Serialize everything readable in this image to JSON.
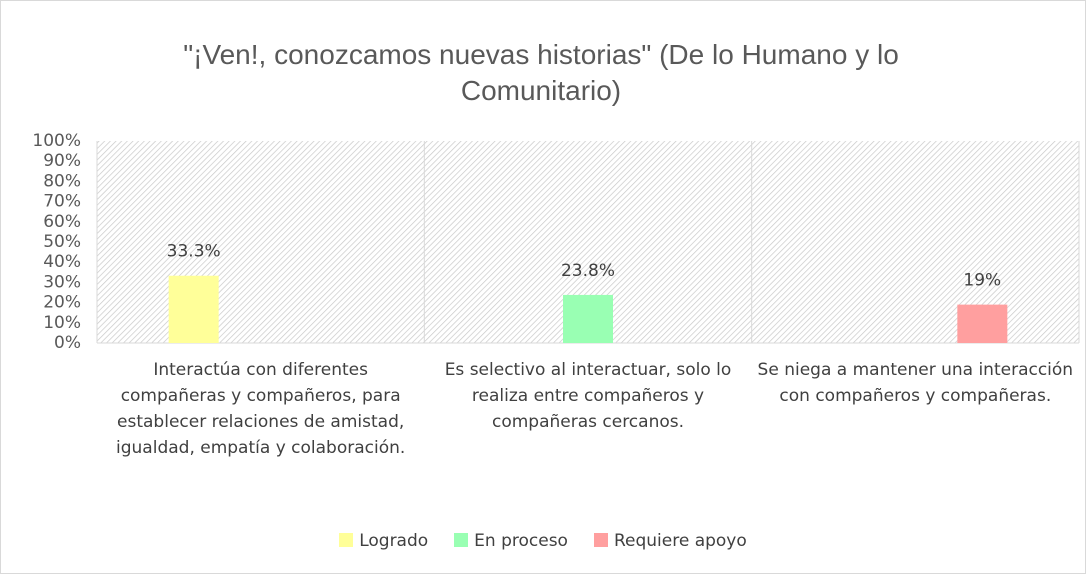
{
  "chart_data": {
    "type": "bar",
    "title": "\"¡Ven!, conozcamos nuevas historias\" (De lo Humano y lo Comunitario)",
    "categories": [
      "Interactúa con diferentes compañeras y compañeros, para establecer relaciones de amistad, igualdad, empatía y colaboración.",
      "Es selectivo al interactuar, solo lo realiza entre compañeros y compañeras cercanos.",
      "Se niega a mantener una interacción con compañeros y compañeras."
    ],
    "series": [
      {
        "name": "Logrado",
        "color": "#ffff99",
        "values": [
          33.3,
          null,
          null
        ],
        "value_labels": [
          "33.3%",
          null,
          null
        ]
      },
      {
        "name": "En proceso",
        "color": "#99ffb3",
        "values": [
          null,
          23.8,
          null
        ],
        "value_labels": [
          null,
          "23.8%",
          null
        ]
      },
      {
        "name": "Requiere apoyo",
        "color": "#ff9f9f",
        "values": [
          null,
          null,
          19
        ],
        "value_labels": [
          null,
          null,
          "19%"
        ]
      }
    ],
    "ylim": [
      0,
      100
    ],
    "yticks": [
      {
        "value": 0,
        "label": "0%"
      },
      {
        "value": 10,
        "label": "10%"
      },
      {
        "value": 20,
        "label": "20%"
      },
      {
        "value": 30,
        "label": "30%"
      },
      {
        "value": 40,
        "label": "40%"
      },
      {
        "value": 50,
        "label": "50%"
      },
      {
        "value": 60,
        "label": "60%"
      },
      {
        "value": 70,
        "label": "70%"
      },
      {
        "value": 80,
        "label": "80%"
      },
      {
        "value": 90,
        "label": "90%"
      },
      {
        "value": 100,
        "label": "100%"
      }
    ],
    "grid": false,
    "legend": "bottom"
  }
}
